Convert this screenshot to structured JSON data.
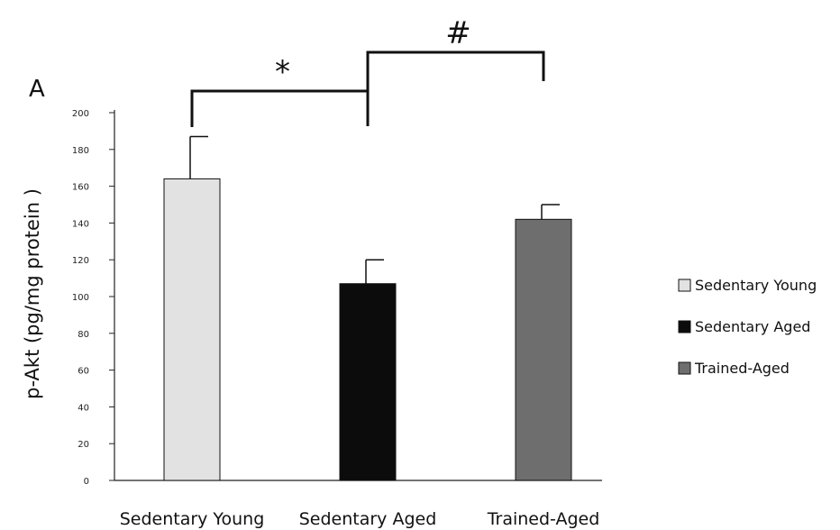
{
  "chart_data": {
    "type": "bar",
    "panel_label": "A",
    "categories": [
      "Sedentary Young",
      "Sedentary Aged",
      "Trained-Aged"
    ],
    "values": [
      164,
      107,
      142
    ],
    "errors": [
      23,
      13,
      8
    ],
    "colors": [
      "#e2e2e2",
      "#0c0c0c",
      "#6e6e6e"
    ],
    "ylabel": "p-Akt (pg/mg protein )",
    "ylim": [
      0,
      200
    ],
    "yticks": [
      0,
      20,
      40,
      60,
      80,
      100,
      120,
      140,
      160,
      180,
      200
    ],
    "legend": {
      "position": "right",
      "entries": [
        "Sedentary Young",
        "Sedentary Aged",
        "Trained-Aged"
      ]
    },
    "significance": [
      {
        "from": 0,
        "to": 1,
        "label": "*"
      },
      {
        "from": 1,
        "to": 2,
        "label": "#"
      }
    ]
  }
}
